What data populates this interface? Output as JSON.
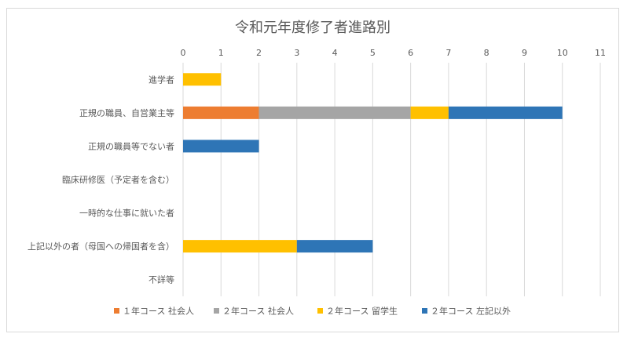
{
  "chart_data": {
    "type": "bar",
    "orientation": "horizontal",
    "stacked": true,
    "title": "令和元年度修了者進路別",
    "xlim": [
      0,
      11
    ],
    "x_ticks": [
      "0",
      "1",
      "2",
      "3",
      "4",
      "5",
      "6",
      "7",
      "8",
      "9",
      "10",
      "11"
    ],
    "categories": [
      "進学者",
      "正規の職員、自営業主等",
      "正規の職員等でない者",
      "臨床研修医（予定者を含む）",
      "一時的な仕事に就いた者",
      "上記以外の者（母国への帰国者を含）",
      "不詳等"
    ],
    "series": [
      {
        "name": "１年コース 社会人",
        "color": "#ED7D31",
        "values": [
          0,
          2,
          0,
          0,
          0,
          0,
          0
        ]
      },
      {
        "name": "２年コース 社会人",
        "color": "#A5A5A5",
        "values": [
          0,
          4,
          0,
          0,
          0,
          0,
          0
        ]
      },
      {
        "name": "２年コース 留学生",
        "color": "#FFC000",
        "values": [
          1,
          1,
          0,
          0,
          0,
          3,
          0
        ]
      },
      {
        "name": "２年コース 左記以外",
        "color": "#2E75B6",
        "values": [
          0,
          3,
          2,
          0,
          0,
          2,
          0
        ]
      }
    ],
    "grid": true,
    "legend_position": "bottom"
  }
}
